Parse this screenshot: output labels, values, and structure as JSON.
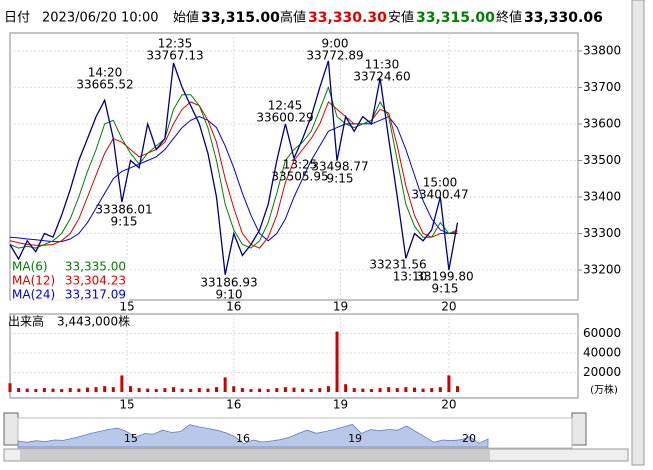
{
  "header": {
    "date_label": "日付",
    "datetime": "2023/06/20 10:00",
    "open_label": "始値",
    "open": "33,315.00",
    "high_label": "高値",
    "high": "33,330.30",
    "low_label": "安値",
    "low": "33,315.00",
    "close_label": "終値",
    "close": "33,330.06"
  },
  "chart_data": [
    {
      "type": "line",
      "xlim": [
        0,
        66
      ],
      "ylim": [
        33118,
        33849
      ],
      "yticks": [
        33200,
        33300,
        33400,
        33500,
        33600,
        33700,
        33800
      ],
      "xticks": [
        {
          "value": 13.6,
          "label": "15"
        },
        {
          "value": 26,
          "label": "16"
        },
        {
          "value": 38.4,
          "label": "19"
        },
        {
          "value": 51,
          "label": "20"
        }
      ],
      "series": [
        {
          "color": "#000080",
          "values": [
            33270,
            33230,
            33280,
            33250,
            33300,
            33290,
            33350,
            33420,
            33500,
            33560,
            33620,
            33665,
            33560,
            33386,
            33500,
            33480,
            33600,
            33530,
            33560,
            33767,
            33700,
            33650,
            33600,
            33520,
            33400,
            33187,
            33300,
            33240,
            33270,
            33310,
            33380,
            33500,
            33600,
            33506,
            33560,
            33620,
            33700,
            33773,
            33499,
            33620,
            33580,
            33620,
            33600,
            33725,
            33560,
            33400,
            33232,
            33300,
            33280,
            33310,
            33400,
            33200,
            33330
          ]
        },
        {
          "name": "MA(6)",
          "legend_value": "33,335.00",
          "color": "#008000",
          "values": [
            33270,
            33260,
            33265,
            33260,
            33270,
            33280,
            33300,
            33340,
            33400,
            33470,
            33530,
            33600,
            33610,
            33560,
            33520,
            33490,
            33520,
            33540,
            33560,
            33640,
            33680,
            33680,
            33650,
            33590,
            33500,
            33380,
            33310,
            33270,
            33260,
            33280,
            33330,
            33410,
            33500,
            33530,
            33550,
            33580,
            33640,
            33700,
            33620,
            33600,
            33590,
            33600,
            33610,
            33660,
            33620,
            33500,
            33380,
            33320,
            33290,
            33290,
            33330,
            33300,
            33310
          ]
        },
        {
          "name": "MA(12)",
          "legend_value": "33,304.23",
          "color": "#e00000",
          "values": [
            33280,
            33275,
            33270,
            33268,
            33268,
            33270,
            33280,
            33300,
            33340,
            33400,
            33460,
            33520,
            33560,
            33550,
            33530,
            33510,
            33520,
            33530,
            33550,
            33600,
            33640,
            33660,
            33650,
            33610,
            33550,
            33450,
            33370,
            33300,
            33270,
            33260,
            33290,
            33350,
            33440,
            33500,
            33530,
            33560,
            33600,
            33660,
            33640,
            33620,
            33600,
            33600,
            33610,
            33640,
            33630,
            33540,
            33430,
            33350,
            33300,
            33290,
            33300,
            33300,
            33305
          ]
        },
        {
          "name": "MA(24)",
          "legend_value": "33,317.09",
          "color": "#0000e0",
          "values": [
            33290,
            33288,
            33285,
            33283,
            33280,
            33278,
            33278,
            33285,
            33300,
            33330,
            33370,
            33410,
            33450,
            33470,
            33480,
            33490,
            33500,
            33510,
            33530,
            33560,
            33590,
            33610,
            33620,
            33610,
            33590,
            33540,
            33480,
            33410,
            33350,
            33300,
            33280,
            33300,
            33340,
            33400,
            33450,
            33500,
            33540,
            33580,
            33590,
            33600,
            33600,
            33600,
            33600,
            33610,
            33620,
            33590,
            33530,
            33460,
            33390,
            33340,
            33310,
            33300,
            33300
          ]
        }
      ],
      "annotations": [
        {
          "time": "14:20",
          "price": "33665.52"
        },
        {
          "time": "9:15",
          "price": "33386.01"
        },
        {
          "time": "12:35",
          "price": "33767.13"
        },
        {
          "time": "9:10",
          "price": "33186.93"
        },
        {
          "time": "12:45",
          "price": "33600.29"
        },
        {
          "time": "13:25",
          "price": "33505.95"
        },
        {
          "time": "9:00",
          "price": "33772.89"
        },
        {
          "time": "9:15",
          "price": "33498.77"
        },
        {
          "time": "11:30",
          "price": "33724.60"
        },
        {
          "time": "13:10",
          "price": "33231.56"
        },
        {
          "time": "15:00",
          "price": "33400.47"
        },
        {
          "time": "9:15",
          "price": "33199.80"
        }
      ]
    },
    {
      "type": "bar",
      "label": "出来高",
      "total": "3,443,000株",
      "unit": "(万株)",
      "color": "#cc0000",
      "xlim": [
        0,
        66
      ],
      "ylim": [
        0,
        80000
      ],
      "yticks": [
        20000,
        40000,
        60000
      ],
      "xticks": [
        {
          "value": 13.6,
          "label": "15"
        },
        {
          "value": 26,
          "label": "16"
        },
        {
          "value": 38.4,
          "label": "19"
        },
        {
          "value": 51,
          "label": "20"
        }
      ],
      "values": [
        9000,
        4000,
        3500,
        3000,
        4000,
        3500,
        3000,
        4000,
        3500,
        4500,
        5000,
        6000,
        5000,
        17000,
        6000,
        4000,
        3500,
        3000,
        4000,
        5000,
        3500,
        3000,
        4000,
        3500,
        5000,
        15000,
        6000,
        4000,
        3000,
        3500,
        3000,
        4000,
        5000,
        4500,
        3500,
        3000,
        4000,
        6000,
        62000,
        8000,
        4000,
        3500,
        3000,
        4000,
        5000,
        4000,
        5000,
        4500,
        3500,
        4000,
        5000,
        17000,
        6000
      ]
    }
  ]
}
